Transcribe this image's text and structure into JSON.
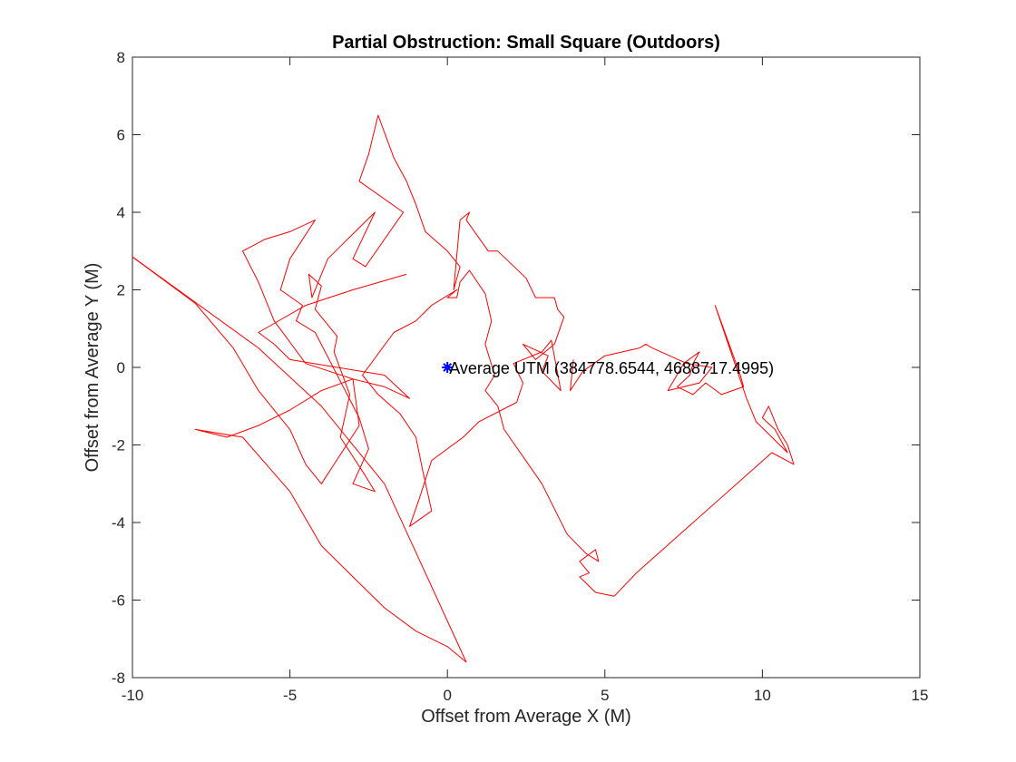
{
  "chart_data": {
    "type": "line",
    "title": "Partial Obstruction: Small Square (Outdoors)",
    "xlabel": "Offset from Average X (M)",
    "ylabel": "Offset from Average Y (M)",
    "xlim": [
      -10,
      15
    ],
    "ylim": [
      -8,
      8
    ],
    "xticks": [
      -10,
      -5,
      0,
      5,
      10,
      15
    ],
    "yticks": [
      -8,
      -6,
      -4,
      -2,
      0,
      2,
      4,
      6,
      8
    ],
    "xtick_labels": [
      "-10",
      "-5",
      "0",
      "5",
      "10",
      "15"
    ],
    "ytick_labels": [
      "-8",
      "-6",
      "-4",
      "-2",
      "0",
      "2",
      "4",
      "6",
      "8"
    ],
    "grid": false,
    "series": [
      {
        "color": "#ff0000",
        "x": [
          -10.0,
          -8.0,
          -6.8,
          -6.0,
          -5.0,
          -4.5,
          -4.0,
          -3.2,
          -2.8,
          -3.0,
          -4.5,
          -5.5,
          -6.0,
          -6.5,
          -5.8,
          -5.0,
          -4.2,
          -5.0,
          -5.3,
          -4.6,
          -4.8,
          -4.2,
          -3.5,
          -2.8,
          -2.5,
          -3.0,
          -2.3,
          -2.6,
          -3.4,
          -3.1,
          -3.6,
          -3.5,
          -4.2,
          -4.0,
          -4.4,
          -4.3,
          -3.8,
          -3.3,
          -2.3,
          -3.0,
          -2.6,
          -1.4,
          -2.8,
          -2.5,
          -2.2,
          -1.7,
          -1.3,
          -1.0,
          -0.7,
          0.0,
          0.4,
          0.2,
          0.4,
          0.7,
          0.6,
          1.3,
          1.6,
          2.5,
          2.8,
          3.4,
          3.5,
          3.7,
          3.4,
          2.8,
          2.4,
          3.2,
          3.0,
          3.6,
          3.3,
          3.0,
          2.1,
          2.4,
          2.2,
          1.0,
          0.5,
          -0.5,
          -0.7,
          -0.9,
          -1.2,
          -0.5,
          -0.8,
          -1.0,
          -1.5,
          -2.2,
          -2.7,
          -1.7,
          -1.0,
          -0.5,
          0.3,
          0.0,
          0.3,
          0.4,
          0.7,
          1.2,
          1.4,
          1.2,
          1.5,
          1.2,
          1.6,
          1.8,
          3.0,
          3.8,
          4.4,
          4.8,
          4.7,
          4.2,
          4.5,
          4.2,
          4.7,
          5.3,
          6.0,
          10.3,
          11.0,
          10.8,
          10.5,
          10.2,
          10.0,
          10.4,
          10.8,
          9.8,
          9.5,
          8.5,
          9.3,
          9.4,
          8.7,
          8.2,
          7.8,
          7.3,
          7.7,
          7.8,
          8.0,
          7.5,
          7.0,
          8.0,
          8.4,
          7.6,
          6.5,
          6.3,
          6.1,
          5.0,
          4.3,
          3.9,
          4.0
        ],
        "y": [
          2.85,
          1.65,
          0.5,
          -0.6,
          -1.6,
          -2.5,
          -3.0,
          -2.0,
          -1.5,
          -0.3,
          0.1,
          1.2,
          2.2,
          3.0,
          3.3,
          3.5,
          3.8,
          2.8,
          2.0,
          1.6,
          1.2,
          0.9,
          -0.2,
          -1.3,
          -2.1,
          -3.0,
          -3.2,
          -2.8,
          -1.8,
          -0.7,
          0.4,
          0.8,
          1.5,
          2.1,
          2.4,
          1.8,
          2.8,
          3.2,
          4.0,
          2.8,
          2.6,
          4.0,
          4.8,
          5.5,
          6.5,
          5.4,
          4.8,
          4.2,
          3.5,
          3.0,
          2.6,
          2.0,
          3.8,
          4.0,
          3.8,
          3.0,
          3.0,
          2.3,
          1.8,
          1.8,
          1.5,
          1.3,
          0.6,
          0.2,
          0.6,
          0.3,
          -0.1,
          -0.6,
          0.7,
          0.4,
          0.1,
          -0.4,
          -0.9,
          -1.4,
          -1.8,
          -2.4,
          -2.9,
          -3.4,
          -4.1,
          -3.7,
          -2.6,
          -1.8,
          -1.2,
          -0.7,
          -0.2,
          0.9,
          1.2,
          1.6,
          2.0,
          1.8,
          1.8,
          2.2,
          2.5,
          1.9,
          1.2,
          0.6,
          -0.2,
          -0.6,
          -1.0,
          -1.6,
          -3.0,
          -4.3,
          -4.8,
          -5.0,
          -4.7,
          -5.0,
          -5.3,
          -5.4,
          -5.8,
          -5.9,
          -5.3,
          -2.2,
          -2.5,
          -2.0,
          -1.6,
          -1.0,
          -1.3,
          -1.6,
          -2.2,
          -1.4,
          -0.8,
          1.6,
          -0.2,
          -0.5,
          -0.7,
          -0.4,
          -0.7,
          -0.5,
          -0.2,
          0.1,
          0.4,
          0.1,
          -0.6,
          -0.4,
          0.0,
          0.1,
          0.5,
          0.6,
          0.5,
          0.3,
          -0.1,
          -0.6,
          0.2
        ]
      },
      {
        "color": "#ff0000",
        "x": [
          -10.0,
          -6.0,
          -4.0,
          -2.0,
          0.6,
          0.0,
          -1.0,
          -2.0,
          -3.0,
          -4.0,
          -5.0,
          -6.5,
          -8.0,
          -7.0,
          -6.0,
          -5.0,
          -4.0,
          -3.0,
          -2.0,
          -1.2,
          -2.0,
          -3.5,
          -5.0,
          -5.5,
          -6.0,
          -4.5,
          -3.0,
          -1.3
        ],
        "y": [
          2.85,
          0.5,
          -1.0,
          -3.0,
          -7.6,
          -7.2,
          -6.8,
          -6.2,
          -5.4,
          -4.6,
          -3.2,
          -1.8,
          -1.6,
          -1.8,
          -1.5,
          -1.1,
          -0.6,
          -0.3,
          -0.5,
          -0.8,
          -0.2,
          0.0,
          0.2,
          0.6,
          0.9,
          1.6,
          2.0,
          2.4
        ]
      }
    ],
    "markers": [
      {
        "x": 0,
        "y": 0,
        "symbol": "*",
        "color": "#0000ff",
        "label": "Average UTM (384778.6544, 4688717.4995)"
      }
    ]
  }
}
